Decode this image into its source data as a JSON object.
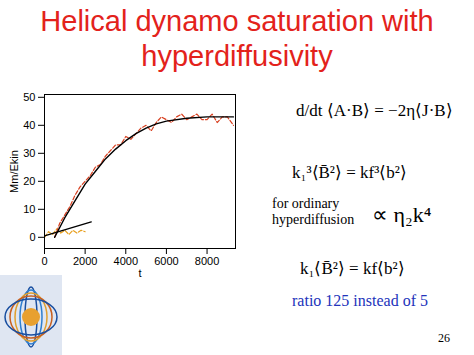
{
  "slide": {
    "title": [
      "Helical dynamo saturation with",
      "hyperdiffusivity"
    ],
    "equations": [
      "d/dt ⟨A·B⟩ = −2η⟨J·B⟩",
      "k₁³⟨B̄²⟩ = kf³⟨b²⟩",
      "k₁⟨B̄²⟩ = kf⟨b²⟩"
    ],
    "note": [
      "for ordinary",
      "hyperdiffusion"
    ],
    "proportional": "∝ η₂k⁴",
    "ratio": "ratio 125 instead of 5",
    "page": "26"
  },
  "chart_data": {
    "type": "line",
    "xlabel": "t",
    "ylabel": "Mm/Ekin",
    "xlim": [
      0,
      9400
    ],
    "ylim": [
      -4,
      51
    ],
    "xticks": [
      0,
      2000,
      4000,
      6000,
      8000
    ],
    "yticks": [
      0,
      10,
      20,
      30,
      40,
      50
    ],
    "grid": false,
    "series": [
      {
        "color": "#e8a020",
        "line_style": "dashed",
        "x": [
          0,
          200,
          400,
          600,
          800,
          1000,
          1200,
          1400,
          1600,
          1800,
          2000
        ],
        "values": [
          0,
          2,
          1,
          3,
          1.5,
          2.5,
          1,
          2.5,
          1.5,
          2.5,
          2
        ]
      },
      {
        "color": "#d84020",
        "line_style": "dashed",
        "x": [
          500,
          750,
          1000,
          1250,
          1500,
          1750,
          2000,
          2250,
          2500,
          2750,
          3000,
          3250,
          3500,
          3750,
          4000,
          4250,
          4500,
          4750,
          5000,
          5250,
          5500,
          5750,
          6000,
          6250,
          6500,
          6750,
          7000,
          7250,
          7500,
          7750,
          8000,
          8250,
          8500,
          8750,
          9000,
          9300
        ],
        "values": [
          0,
          5,
          8,
          11,
          15,
          18,
          20,
          22,
          25,
          26,
          29,
          31,
          33,
          33,
          36,
          35,
          37,
          39,
          40,
          38,
          41,
          43,
          42,
          41,
          43,
          44,
          42,
          43,
          44,
          42,
          42,
          44,
          41,
          43,
          43,
          40
        ]
      },
      {
        "color": "#000000",
        "line_style": "solid",
        "x": [
          500,
          1000,
          1500,
          2000,
          2500,
          3000,
          3500,
          4000,
          4500,
          5000,
          5500,
          6000,
          7000,
          8000,
          9300
        ],
        "values": [
          0,
          7,
          13,
          19,
          23.5,
          28,
          31.5,
          34.5,
          37,
          39,
          40.5,
          41.5,
          42.5,
          43,
          43
        ]
      },
      {
        "color": "#000000",
        "line_style": "solid",
        "x": [
          0,
          2300
        ],
        "values": [
          0.5,
          5.5
        ]
      }
    ]
  }
}
